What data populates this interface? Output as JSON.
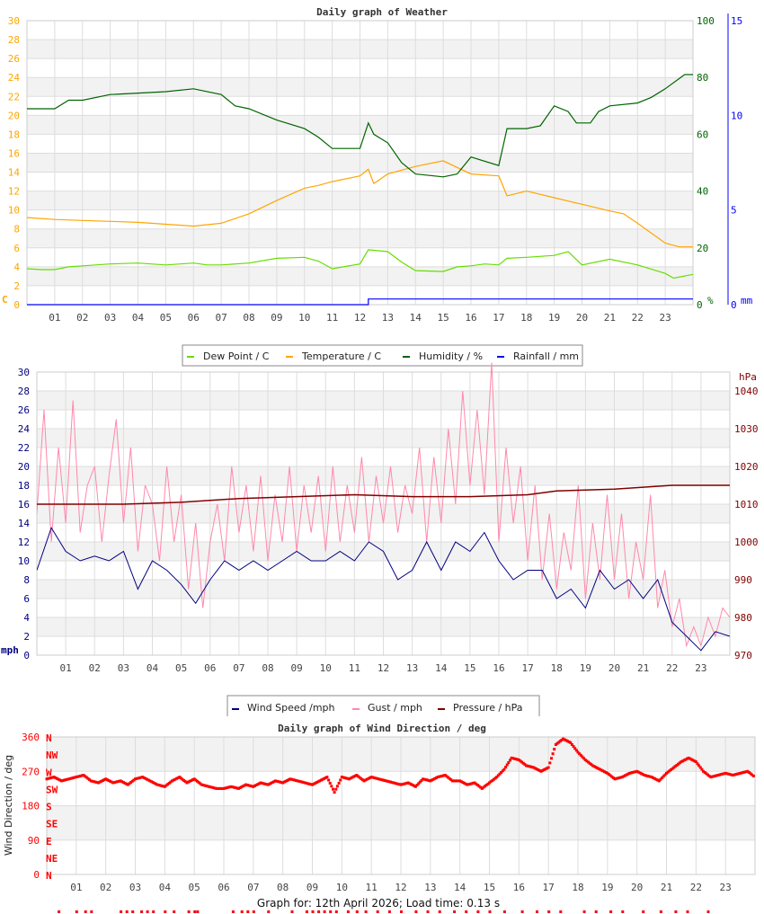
{
  "page": {
    "footer": "Graph for: 12th April 2026; Load time: 0.13 s"
  },
  "chart_data": [
    {
      "type": "line",
      "title": "Daily graph of Weather",
      "xlim": [
        0,
        24
      ],
      "x_ticks": [
        "01",
        "02",
        "03",
        "04",
        "05",
        "06",
        "07",
        "08",
        "09",
        "10",
        "11",
        "12",
        "13",
        "14",
        "15",
        "16",
        "17",
        "18",
        "19",
        "20",
        "21",
        "22",
        "23"
      ],
      "grid": true,
      "legend": "bottom",
      "y_left": {
        "unit": "C",
        "lim": [
          0,
          30
        ],
        "ticks": [
          0,
          2,
          4,
          6,
          8,
          10,
          12,
          14,
          16,
          18,
          20,
          22,
          24,
          26,
          28,
          30
        ],
        "color": "#ffa500"
      },
      "y_right": {
        "unit": "%",
        "lim": [
          0,
          100
        ],
        "ticks": [
          0,
          20,
          40,
          60,
          80,
          100
        ],
        "color": "#006400"
      },
      "y_right2": {
        "unit": "mm",
        "lim": [
          0,
          15
        ],
        "ticks": [
          0,
          5,
          10,
          15
        ],
        "color": "#0000ff"
      },
      "series": [
        {
          "name": "Dew Point / C",
          "color": "#66dd00",
          "axis": "left",
          "points": [
            [
              0,
              3.8
            ],
            [
              0.5,
              3.7
            ],
            [
              1,
              3.7
            ],
            [
              1.5,
              4.0
            ],
            [
              2,
              4.1
            ],
            [
              3,
              4.3
            ],
            [
              4,
              4.4
            ],
            [
              5,
              4.2
            ],
            [
              6,
              4.4
            ],
            [
              6.5,
              4.2
            ],
            [
              7,
              4.2
            ],
            [
              8,
              4.4
            ],
            [
              9,
              4.9
            ],
            [
              10,
              5.0
            ],
            [
              10.5,
              4.6
            ],
            [
              11,
              3.8
            ],
            [
              12,
              4.3
            ],
            [
              12.3,
              5.8
            ],
            [
              13,
              5.6
            ],
            [
              13.5,
              4.5
            ],
            [
              14,
              3.6
            ],
            [
              15,
              3.5
            ],
            [
              15.5,
              4.0
            ],
            [
              16,
              4.1
            ],
            [
              16.5,
              4.3
            ],
            [
              17,
              4.2
            ],
            [
              17.3,
              4.9
            ],
            [
              18,
              5.0
            ],
            [
              19,
              5.2
            ],
            [
              19.5,
              5.6
            ],
            [
              20,
              4.2
            ],
            [
              21,
              4.8
            ],
            [
              22,
              4.2
            ],
            [
              23,
              3.3
            ],
            [
              23.3,
              2.8
            ],
            [
              24,
              3.2
            ]
          ]
        },
        {
          "name": "Temperature / C",
          "color": "#ffa500",
          "axis": "left",
          "points": [
            [
              0,
              9.2
            ],
            [
              1,
              9.0
            ],
            [
              2,
              8.9
            ],
            [
              3,
              8.8
            ],
            [
              4,
              8.7
            ],
            [
              5,
              8.5
            ],
            [
              6,
              8.3
            ],
            [
              7,
              8.6
            ],
            [
              8,
              9.6
            ],
            [
              9,
              11.0
            ],
            [
              10,
              12.3
            ],
            [
              10.5,
              12.6
            ],
            [
              11,
              13.0
            ],
            [
              12,
              13.6
            ],
            [
              12.3,
              14.3
            ],
            [
              12.5,
              12.8
            ],
            [
              13,
              13.8
            ],
            [
              14,
              14.6
            ],
            [
              15,
              15.2
            ],
            [
              15.5,
              14.5
            ],
            [
              16,
              13.8
            ],
            [
              17,
              13.6
            ],
            [
              17.3,
              11.5
            ],
            [
              18,
              12.0
            ],
            [
              19,
              11.3
            ],
            [
              20,
              10.6
            ],
            [
              21,
              9.9
            ],
            [
              21.5,
              9.6
            ],
            [
              22,
              8.6
            ],
            [
              23,
              6.5
            ],
            [
              23.5,
              6.1
            ],
            [
              24,
              6.1
            ]
          ]
        },
        {
          "name": "Humidity / %",
          "color": "#006400",
          "axis": "right",
          "points": [
            [
              0,
              69
            ],
            [
              1,
              69
            ],
            [
              1.5,
              72
            ],
            [
              2,
              72
            ],
            [
              3,
              74
            ],
            [
              5,
              75
            ],
            [
              6,
              76
            ],
            [
              7,
              74
            ],
            [
              7.5,
              70
            ],
            [
              8,
              69
            ],
            [
              9,
              65
            ],
            [
              10,
              62
            ],
            [
              10.5,
              59
            ],
            [
              11,
              55
            ],
            [
              12,
              55
            ],
            [
              12.3,
              64
            ],
            [
              12.5,
              60
            ],
            [
              13,
              57
            ],
            [
              13.5,
              50
            ],
            [
              14,
              46
            ],
            [
              15,
              45
            ],
            [
              15.5,
              46
            ],
            [
              16,
              52
            ],
            [
              17,
              49
            ],
            [
              17.3,
              62
            ],
            [
              18,
              62
            ],
            [
              18.5,
              63
            ],
            [
              19,
              70
            ],
            [
              19.5,
              68
            ],
            [
              19.8,
              64
            ],
            [
              20.3,
              64
            ],
            [
              20.6,
              68
            ],
            [
              21,
              70
            ],
            [
              22,
              71
            ],
            [
              22.5,
              73
            ],
            [
              23,
              76
            ],
            [
              23.7,
              81
            ],
            [
              24,
              81
            ]
          ]
        },
        {
          "name": "Rainfall / mm",
          "color": "#0000ff",
          "axis": "right2",
          "points": [
            [
              0,
              0
            ],
            [
              12.3,
              0
            ],
            [
              12.3,
              0.3
            ],
            [
              24,
              0.3
            ]
          ]
        }
      ]
    },
    {
      "type": "line",
      "title": "",
      "xlim": [
        0,
        24
      ],
      "x_ticks": [
        "01",
        "02",
        "03",
        "04",
        "05",
        "06",
        "07",
        "08",
        "09",
        "10",
        "11",
        "12",
        "13",
        "14",
        "15",
        "16",
        "17",
        "18",
        "19",
        "20",
        "21",
        "22",
        "23"
      ],
      "grid": true,
      "legend": "bottom",
      "y_left": {
        "unit": "mph",
        "lim": [
          0,
          30
        ],
        "ticks": [
          0,
          2,
          4,
          6,
          8,
          10,
          12,
          14,
          16,
          18,
          20,
          22,
          24,
          26,
          28,
          30
        ],
        "color": "#000080"
      },
      "y_right": {
        "unit": "hPa",
        "lim": [
          970,
          1045
        ],
        "ticks": [
          970,
          980,
          990,
          1000,
          1010,
          1020,
          1030,
          1040
        ],
        "color": "#800000"
      },
      "series": [
        {
          "name": "Wind Speed /mph",
          "color": "#000080",
          "axis": "left",
          "points": [
            [
              0,
              9
            ],
            [
              0.5,
              13.5
            ],
            [
              1,
              11
            ],
            [
              1.5,
              10
            ],
            [
              2,
              10.5
            ],
            [
              2.5,
              10
            ],
            [
              3,
              11
            ],
            [
              3.5,
              7
            ],
            [
              4,
              10
            ],
            [
              4.5,
              9
            ],
            [
              5,
              7.5
            ],
            [
              5.5,
              5.5
            ],
            [
              6,
              8
            ],
            [
              6.5,
              10
            ],
            [
              7,
              9
            ],
            [
              7.5,
              10
            ],
            [
              8,
              9
            ],
            [
              8.5,
              10
            ],
            [
              9,
              11
            ],
            [
              9.5,
              10
            ],
            [
              10,
              10
            ],
            [
              10.5,
              11
            ],
            [
              11,
              10
            ],
            [
              11.5,
              12
            ],
            [
              12,
              11
            ],
            [
              12.5,
              8
            ],
            [
              13,
              9
            ],
            [
              13.5,
              12
            ],
            [
              14,
              9
            ],
            [
              14.5,
              12
            ],
            [
              15,
              11
            ],
            [
              15.5,
              13
            ],
            [
              16,
              10
            ],
            [
              16.5,
              8
            ],
            [
              17,
              9
            ],
            [
              17.5,
              9
            ],
            [
              18,
              6
            ],
            [
              18.5,
              7
            ],
            [
              19,
              5
            ],
            [
              19.5,
              9
            ],
            [
              20,
              7
            ],
            [
              20.5,
              8
            ],
            [
              21,
              6
            ],
            [
              21.5,
              8
            ],
            [
              22,
              3.5
            ],
            [
              22.5,
              2
            ],
            [
              23,
              0.5
            ],
            [
              23.5,
              2.5
            ],
            [
              24,
              2
            ]
          ]
        },
        {
          "name": "Gust / mph",
          "color": "#ff88aa",
          "axis": "left",
          "step_hours": 0.25,
          "values": [
            15,
            26,
            12,
            22,
            14,
            27,
            13,
            18,
            20,
            12,
            19,
            25,
            14,
            22,
            11,
            18,
            16,
            10,
            20,
            12,
            17,
            7,
            14,
            5,
            12,
            16,
            10,
            20,
            13,
            18,
            11,
            19,
            10,
            17,
            12,
            20,
            11,
            18,
            13,
            19,
            11,
            20,
            12,
            18,
            13,
            21,
            12,
            19,
            14,
            20,
            13,
            18,
            15,
            22,
            12,
            21,
            14,
            24,
            16,
            28,
            18,
            26,
            17,
            31,
            12,
            22,
            14,
            20,
            10,
            18,
            8,
            15,
            7,
            13,
            9,
            18,
            6,
            14,
            8,
            17,
            8,
            15,
            6,
            12,
            8,
            17,
            5,
            9,
            3,
            6,
            1,
            3,
            1,
            4,
            2,
            5,
            4
          ]
        },
        {
          "name": "Pressure / hPa",
          "color": "#800000",
          "axis": "right",
          "points": [
            [
              0,
              1010
            ],
            [
              3,
              1010
            ],
            [
              5,
              1010.5
            ],
            [
              7,
              1011.5
            ],
            [
              9,
              1012
            ],
            [
              11,
              1012.5
            ],
            [
              13,
              1012
            ],
            [
              15,
              1012
            ],
            [
              17,
              1012.5
            ],
            [
              18,
              1013.5
            ],
            [
              20,
              1014
            ],
            [
              21,
              1014.5
            ],
            [
              22,
              1015
            ],
            [
              24,
              1015
            ]
          ]
        }
      ]
    },
    {
      "type": "scatter",
      "title": "Daily graph of Wind Direction / deg",
      "ylabel": "Wind Direction / deg",
      "xlim": [
        0,
        24
      ],
      "x_ticks": [
        "01",
        "02",
        "03",
        "04",
        "05",
        "06",
        "07",
        "08",
        "09",
        "10",
        "11",
        "12",
        "13",
        "14",
        "15",
        "16",
        "17",
        "18",
        "19",
        "20",
        "21",
        "22",
        "23"
      ],
      "grid": true,
      "y_left": {
        "lim": [
          0,
          360
        ],
        "ticks": [
          0,
          90,
          180,
          270,
          360
        ],
        "color": "#ff0000"
      },
      "compass": [
        "N",
        "NE",
        "E",
        "SE",
        "S",
        "SW",
        "W",
        "NW",
        "N"
      ],
      "series": [
        {
          "name": "",
          "color": "#ff0000",
          "step_hours": 0.25,
          "values": [
            250,
            255,
            245,
            250,
            255,
            260,
            245,
            240,
            250,
            240,
            245,
            235,
            250,
            255,
            245,
            235,
            230,
            245,
            255,
            240,
            250,
            235,
            230,
            225,
            225,
            230,
            225,
            235,
            230,
            240,
            235,
            245,
            240,
            250,
            245,
            240,
            235,
            245,
            255,
            215,
            255,
            250,
            260,
            245,
            255,
            250,
            245,
            240,
            235,
            240,
            230,
            250,
            245,
            255,
            260,
            245,
            245,
            235,
            240,
            225,
            240,
            255,
            275,
            305,
            300,
            285,
            280,
            270,
            280,
            340,
            355,
            345,
            320,
            300,
            285,
            275,
            265,
            250,
            255,
            265,
            270,
            260,
            255,
            245,
            265,
            280,
            295,
            305,
            295,
            270,
            255,
            260,
            265,
            260,
            265,
            270,
            255
          ]
        }
      ],
      "calm_hours": [
        0.4,
        1.0,
        1.3,
        1.5,
        2.5,
        2.7,
        2.9,
        3.2,
        3.4,
        3.6,
        4.0,
        4.3,
        4.8,
        5.0,
        5.1,
        6.3,
        6.6,
        6.8,
        7.0,
        7.5,
        8.3,
        8.8,
        9.0,
        9.2,
        9.4,
        9.6,
        9.8,
        10.2,
        10.5,
        10.8,
        11.2,
        11.6,
        12.0,
        12.5,
        12.9,
        13.3,
        13.8,
        14.2,
        14.6,
        15.0,
        15.5,
        16.1,
        16.6,
        17.0,
        17.4,
        18.2,
        18.6,
        19.1,
        19.5,
        20.2,
        20.8,
        21.3,
        21.7,
        22.4
      ]
    }
  ]
}
